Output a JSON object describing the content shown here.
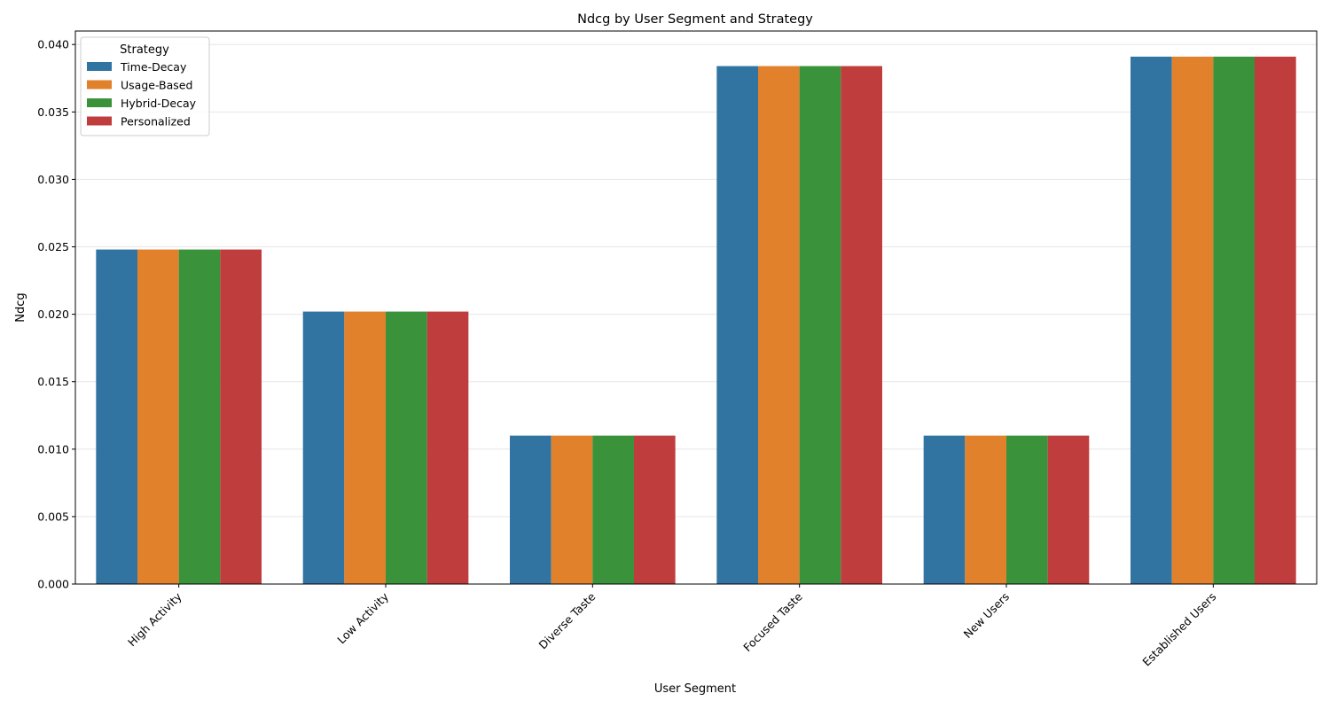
{
  "chart_data": {
    "type": "bar",
    "title": "Ndcg by User Segment and Strategy",
    "xlabel": "User Segment",
    "ylabel": "Ndcg",
    "ylim": [
      0,
      0.041
    ],
    "yticks": [
      0.0,
      0.005,
      0.01,
      0.015,
      0.02,
      0.025,
      0.03,
      0.035,
      0.04
    ],
    "ytick_labels": [
      "0.000",
      "0.005",
      "0.010",
      "0.015",
      "0.020",
      "0.025",
      "0.030",
      "0.035",
      "0.040"
    ],
    "grid": "horizontal",
    "categories": [
      "High Activity",
      "Low Activity",
      "Diverse Taste",
      "Focused Taste",
      "New Users",
      "Established Users"
    ],
    "legend": {
      "title": "Strategy",
      "placement": "top-left"
    },
    "series": [
      {
        "name": "Time-Decay",
        "color": "#3274a1",
        "values": [
          0.0248,
          0.0202,
          0.011,
          0.0384,
          0.011,
          0.0391
        ]
      },
      {
        "name": "Usage-Based",
        "color": "#e1812c",
        "values": [
          0.0248,
          0.0202,
          0.011,
          0.0384,
          0.011,
          0.0391
        ]
      },
      {
        "name": "Hybrid-Decay",
        "color": "#3a923a",
        "values": [
          0.0248,
          0.0202,
          0.011,
          0.0384,
          0.011,
          0.0391
        ]
      },
      {
        "name": "Personalized",
        "color": "#c03d3e",
        "values": [
          0.0248,
          0.0202,
          0.011,
          0.0384,
          0.011,
          0.0391
        ]
      }
    ]
  }
}
